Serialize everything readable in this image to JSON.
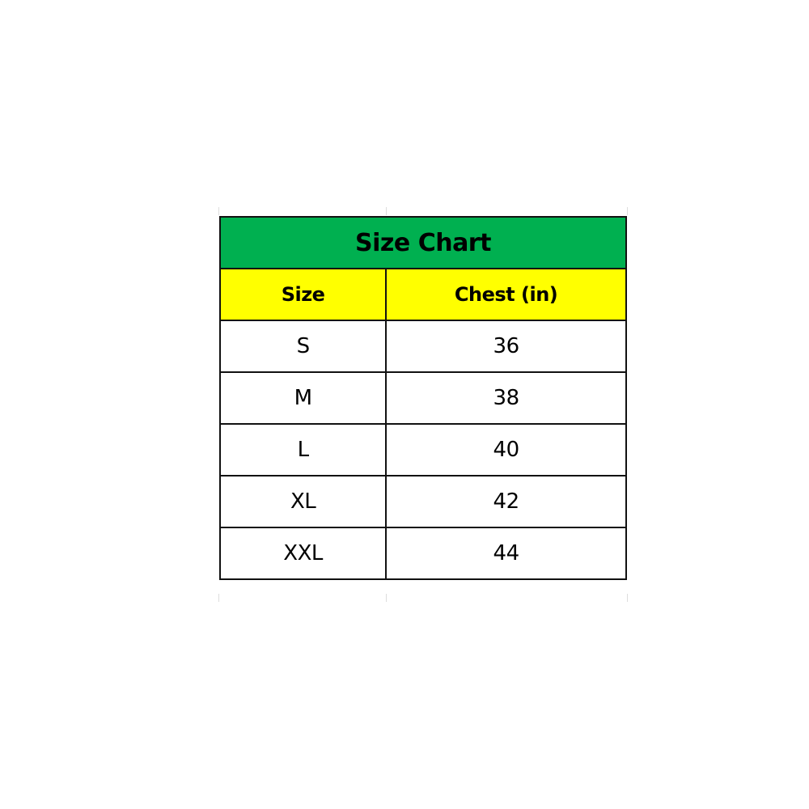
{
  "title": "Size Chart",
  "colors": {
    "title_bg": "#00B050",
    "header_bg": "#FFFF00"
  },
  "columns": [
    "Size",
    "Chest (in)"
  ],
  "rows": [
    {
      "size": "S",
      "chest": "36"
    },
    {
      "size": "M",
      "chest": "38"
    },
    {
      "size": "L",
      "chest": "40"
    },
    {
      "size": "XL",
      "chest": "42"
    },
    {
      "size": "XXL",
      "chest": "44"
    }
  ]
}
